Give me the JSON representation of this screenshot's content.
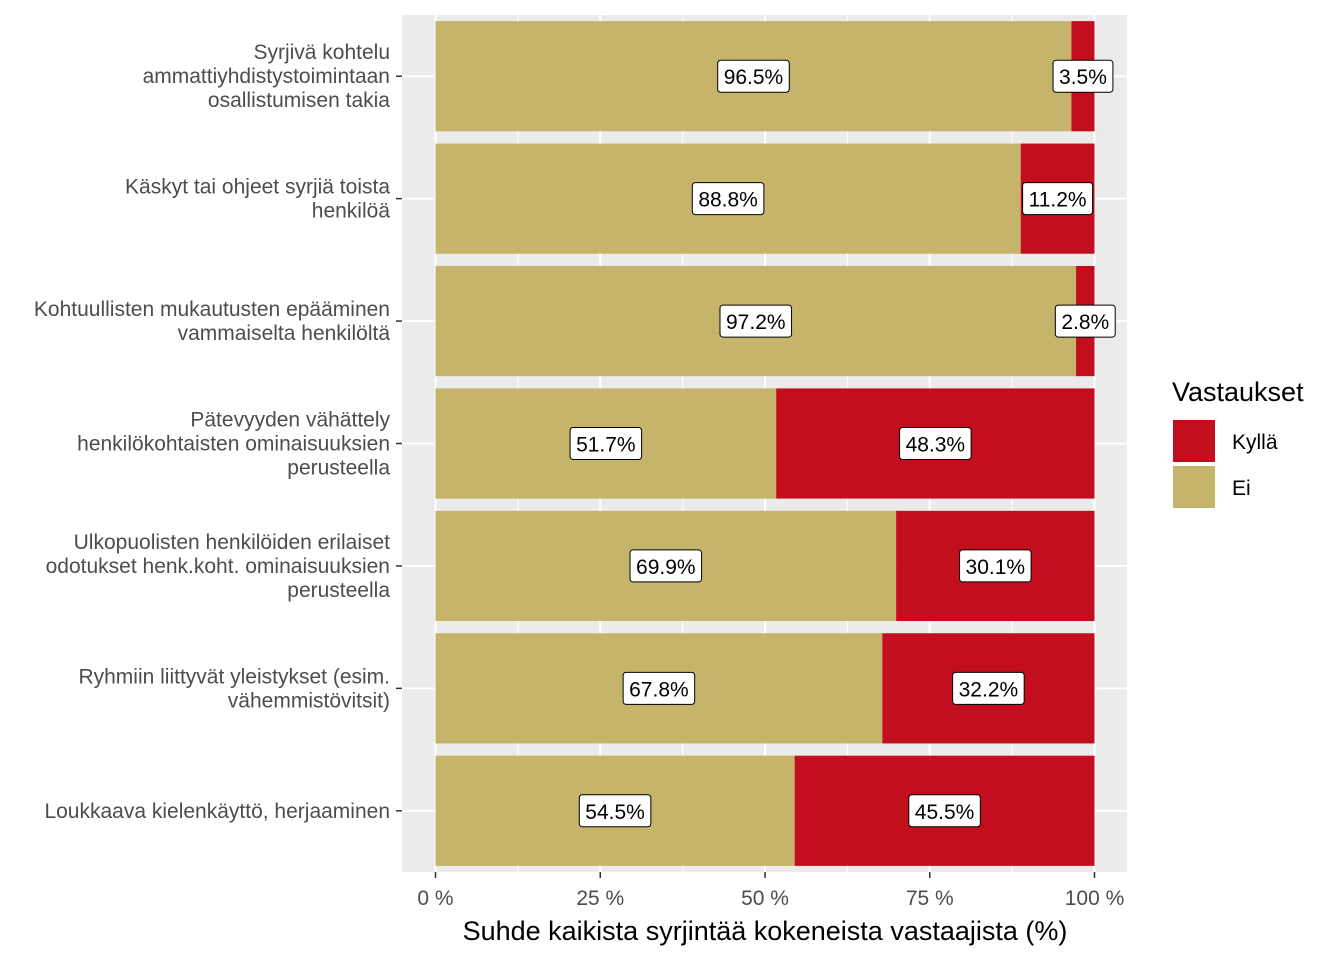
{
  "chart_data": {
    "type": "bar",
    "orientation": "horizontal",
    "stacked": true,
    "categories": [
      [
        "Syrjivä kohtelu",
        "ammattiyhdistystoimintaan",
        "osallistumisen takia"
      ],
      [
        "Käskyt tai ohjeet syrjiä toista",
        "henkilöä"
      ],
      [
        "Kohtuullisten mukautusten epääminen",
        "vammaiselta henkilöltä"
      ],
      [
        "Pätevyyden vähättely",
        "henkilökohtaisten ominaisuuksien",
        "perusteella"
      ],
      [
        "Ulkopuolisten henkilöiden erilaiset",
        "odotukset henk.koht. ominaisuuksien",
        "perusteella"
      ],
      [
        "Ryhmiin liittyvät yleistykset (esim.",
        "vähemmistövitsit)"
      ],
      [
        "Loukkaava kielenkäyttö, herjaaminen"
      ]
    ],
    "series": [
      {
        "name": "Ei",
        "color": "#c5b46a",
        "values": [
          96.5,
          88.8,
          97.2,
          51.7,
          69.9,
          67.8,
          54.5
        ],
        "labels": [
          "96.5%",
          "88.8%",
          "97.2%",
          "51.7%",
          "69.9%",
          "67.8%",
          "54.5%"
        ]
      },
      {
        "name": "Kyllä",
        "color": "#c30f1d",
        "values": [
          3.5,
          11.2,
          2.8,
          48.3,
          30.1,
          32.2,
          45.5
        ],
        "labels": [
          "3.5%",
          "11.2%",
          "2.8%",
          "48.3%",
          "30.1%",
          "32.2%",
          "45.5%"
        ]
      }
    ],
    "xlabel": "Suhde kaikista syrjintää kokeneista vastaajista (%)",
    "ylabel": "",
    "xlim": [
      0,
      100
    ],
    "xticks": [
      0,
      25,
      50,
      75,
      100
    ],
    "xtick_labels": [
      "0 %",
      "25 %",
      "50 %",
      "75 %",
      "100 %"
    ],
    "grid": true,
    "legend": {
      "title": "Vastaukset",
      "position": "right",
      "entries": [
        {
          "label": "Kyllä",
          "color": "#c30f1d"
        },
        {
          "label": "Ei",
          "color": "#c5b46a"
        }
      ]
    }
  }
}
